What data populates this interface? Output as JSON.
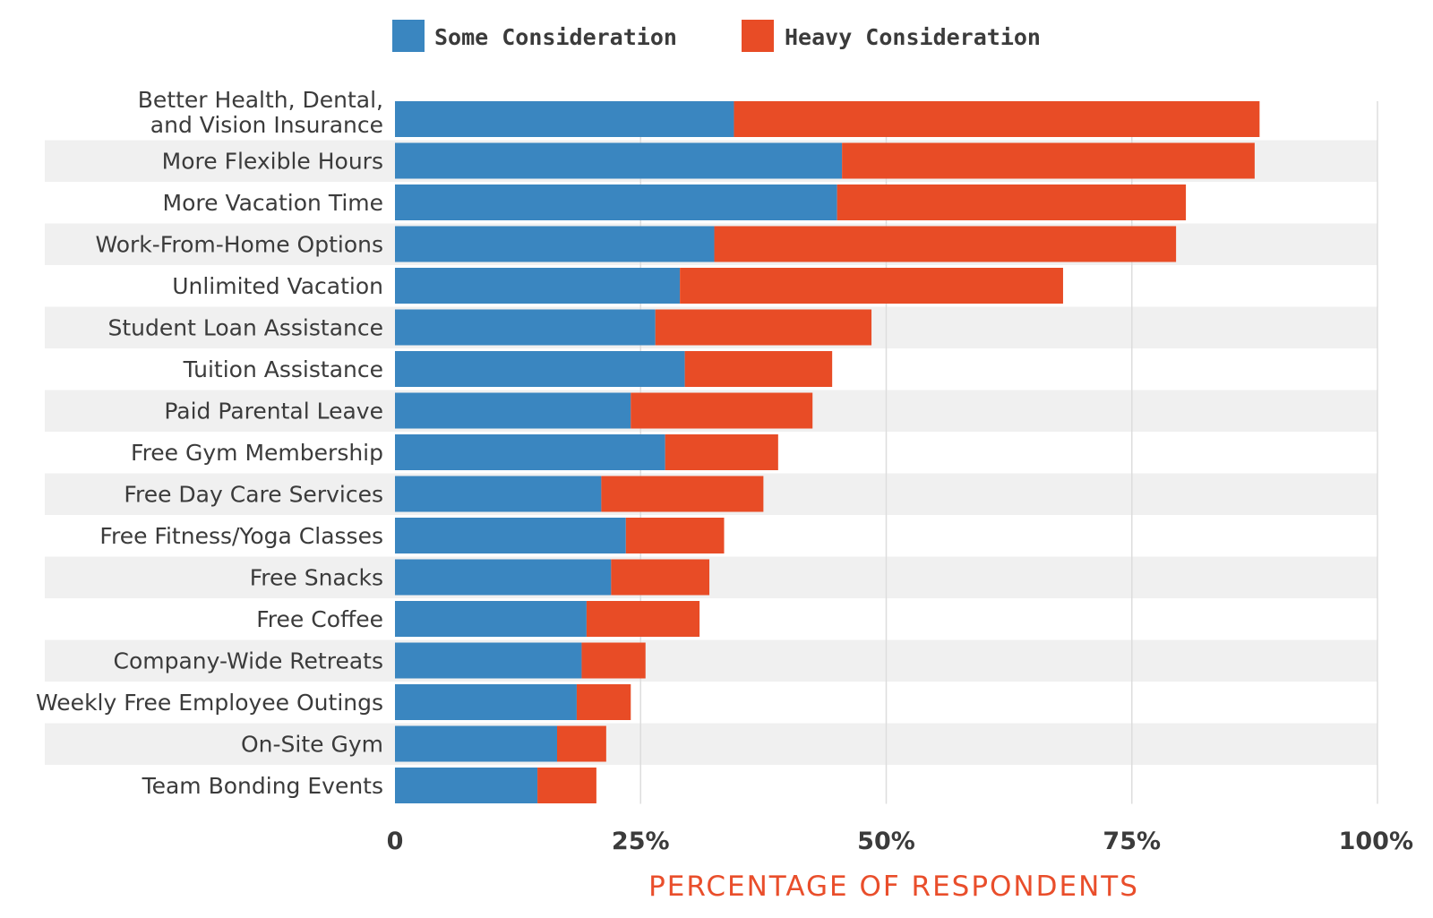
{
  "chart_data": {
    "type": "bar",
    "orientation": "horizontal",
    "stacked": true,
    "xlabel": "PERCENTAGE OF RESPONDENTS",
    "ylabel": "",
    "xlim": [
      0,
      100
    ],
    "x_ticks": [
      "0",
      "25%",
      "50%",
      "75%",
      "100%"
    ],
    "x_tick_values": [
      0,
      25,
      50,
      75,
      100
    ],
    "legend_position": "top",
    "grid": true,
    "colors": {
      "some": "#3a86c0",
      "heavy": "#e84c26",
      "band": "#f0f0f0",
      "grid": "#dddddd",
      "axis_title": "#e94e2b"
    },
    "categories": [
      [
        "Better Health, Dental,",
        "and Vision Insurance"
      ],
      [
        "More Flexible Hours"
      ],
      [
        "More Vacation Time"
      ],
      [
        "Work-From-Home Options"
      ],
      [
        "Unlimited Vacation"
      ],
      [
        "Student Loan Assistance"
      ],
      [
        "Tuition Assistance"
      ],
      [
        "Paid Parental Leave"
      ],
      [
        "Free Gym Membership"
      ],
      [
        "Free Day Care Services"
      ],
      [
        "Free Fitness/Yoga Classes"
      ],
      [
        "Free Snacks"
      ],
      [
        "Free Coffee"
      ],
      [
        "Company-Wide Retreats"
      ],
      [
        "Weekly Free Employee Outings"
      ],
      [
        "On-Site Gym"
      ],
      [
        "Team Bonding Events"
      ]
    ],
    "series": [
      {
        "name": "Some Consideration",
        "values": [
          34.5,
          45.5,
          45,
          32.5,
          29,
          26.5,
          29.5,
          24,
          27.5,
          21,
          23.5,
          22,
          19.5,
          19,
          18.5,
          16.5,
          14.5
        ]
      },
      {
        "name": "Heavy Consideration",
        "values": [
          53.5,
          42,
          35.5,
          47,
          39,
          22,
          15,
          18.5,
          11.5,
          16.5,
          10,
          10,
          11.5,
          6.5,
          5.5,
          5,
          6
        ]
      }
    ]
  }
}
